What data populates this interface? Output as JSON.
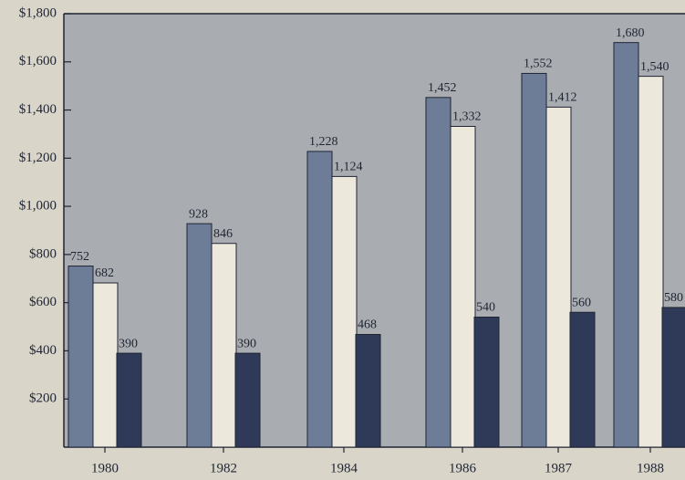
{
  "chart_data": {
    "type": "bar",
    "categories": [
      "1980",
      "1982",
      "1984",
      "1986",
      "1987",
      "1988"
    ],
    "series": [
      {
        "color": "#6d7d98",
        "values": [
          752,
          928,
          1228,
          1452,
          1552,
          1680
        ],
        "value_labels": [
          "752",
          "928",
          "1,228",
          "1,452",
          "1,552",
          "1,680"
        ]
      },
      {
        "color": "#ece9dc",
        "values": [
          682,
          846,
          1124,
          1332,
          1412,
          1540
        ],
        "value_labels": [
          "682",
          "846",
          "1,124",
          "1,332",
          "1,412",
          "1,540"
        ]
      },
      {
        "color": "#2e3a57",
        "values": [
          390,
          390,
          468,
          540,
          560,
          580
        ],
        "value_labels": [
          "390",
          "390",
          "468",
          "540",
          "560",
          "580"
        ]
      }
    ],
    "ylim": [
      0,
      1800
    ],
    "yticks": [
      {
        "value": 200,
        "label": "$200"
      },
      {
        "value": 400,
        "label": "$400"
      },
      {
        "value": 600,
        "label": "$600"
      },
      {
        "value": 800,
        "label": "$800"
      },
      {
        "value": 1000,
        "label": "$1,000"
      },
      {
        "value": 1200,
        "label": "$1,200"
      },
      {
        "value": 1400,
        "label": "$1,400"
      },
      {
        "value": 1600,
        "label": "$1,600"
      },
      {
        "value": 1800,
        "label": "$1,800"
      }
    ]
  }
}
